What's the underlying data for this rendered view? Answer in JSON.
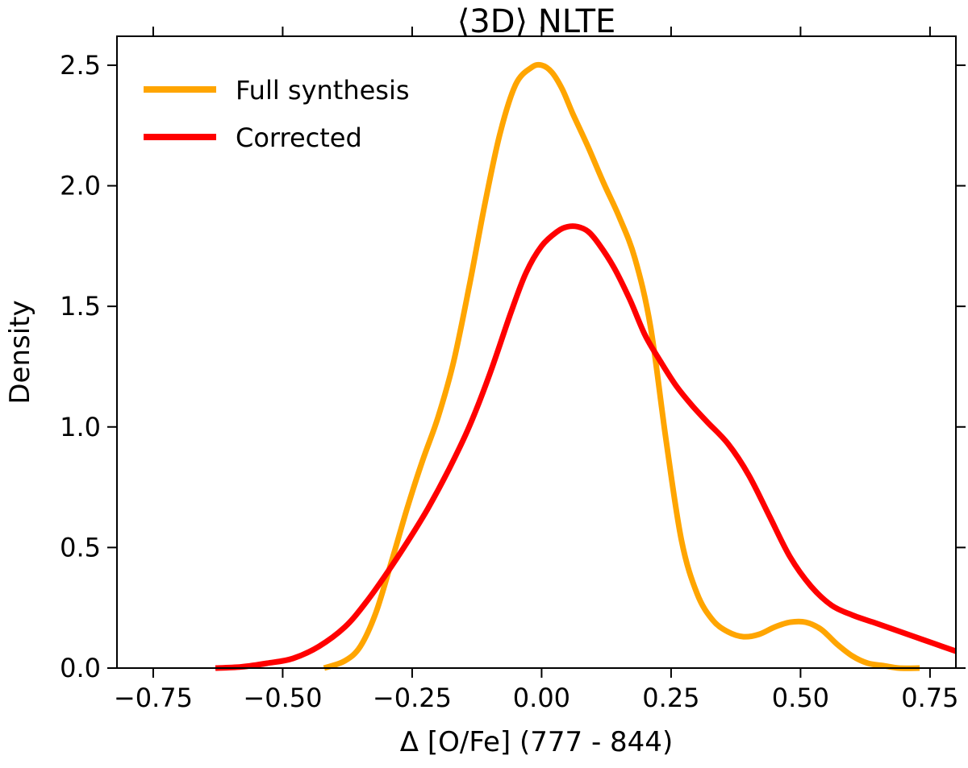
{
  "chart_data": {
    "type": "line",
    "title": "⟨3D⟩ NLTE",
    "xlabel": "Δ [O/Fe] (777 - 844)",
    "ylabel": "Density",
    "xlim": [
      -0.82,
      0.8
    ],
    "ylim": [
      0,
      2.62
    ],
    "xticks": [
      -0.75,
      -0.5,
      -0.25,
      0.0,
      0.25,
      0.5,
      0.75
    ],
    "xtick_labels": [
      "−0.75",
      "−0.50",
      "−0.25",
      "0.00",
      "0.25",
      "0.50",
      "0.75"
    ],
    "yticks": [
      0.0,
      0.5,
      1.0,
      1.5,
      2.0,
      2.5
    ],
    "ytick_labels": [
      "0.0",
      "0.5",
      "1.0",
      "1.5",
      "2.0",
      "2.5"
    ],
    "grid": false,
    "legend_location": "upper-left",
    "series": [
      {
        "name": "Full synthesis",
        "color": "#ffa500",
        "x": [
          -0.42,
          -0.38,
          -0.35,
          -0.32,
          -0.29,
          -0.26,
          -0.23,
          -0.2,
          -0.17,
          -0.14,
          -0.11,
          -0.08,
          -0.05,
          -0.02,
          0.0,
          0.02,
          0.04,
          0.06,
          0.09,
          0.12,
          0.15,
          0.18,
          0.21,
          0.24,
          0.27,
          0.3,
          0.33,
          0.36,
          0.39,
          0.42,
          0.45,
          0.48,
          0.51,
          0.54,
          0.57,
          0.6,
          0.63,
          0.66,
          0.69,
          0.73
        ],
        "values": [
          0.0,
          0.03,
          0.09,
          0.23,
          0.44,
          0.66,
          0.86,
          1.04,
          1.27,
          1.58,
          1.92,
          2.22,
          2.42,
          2.49,
          2.5,
          2.47,
          2.4,
          2.3,
          2.16,
          2.01,
          1.87,
          1.7,
          1.42,
          0.95,
          0.53,
          0.31,
          0.2,
          0.15,
          0.13,
          0.14,
          0.17,
          0.19,
          0.19,
          0.16,
          0.1,
          0.05,
          0.02,
          0.01,
          0.0,
          0.0
        ]
      },
      {
        "name": "Corrected",
        "color": "#ff0000",
        "x": [
          -0.63,
          -0.58,
          -0.53,
          -0.48,
          -0.43,
          -0.38,
          -0.34,
          -0.3,
          -0.26,
          -0.22,
          -0.18,
          -0.14,
          -0.1,
          -0.06,
          -0.03,
          0.0,
          0.03,
          0.05,
          0.07,
          0.09,
          0.11,
          0.14,
          0.17,
          0.2,
          0.23,
          0.26,
          0.29,
          0.32,
          0.36,
          0.4,
          0.44,
          0.48,
          0.52,
          0.56,
          0.6,
          0.64,
          0.68,
          0.72,
          0.76,
          0.8
        ],
        "values": [
          0.0,
          0.005,
          0.02,
          0.04,
          0.09,
          0.17,
          0.27,
          0.39,
          0.52,
          0.66,
          0.82,
          1.0,
          1.22,
          1.47,
          1.64,
          1.75,
          1.81,
          1.83,
          1.83,
          1.81,
          1.76,
          1.66,
          1.53,
          1.38,
          1.27,
          1.17,
          1.09,
          1.02,
          0.93,
          0.8,
          0.63,
          0.46,
          0.34,
          0.26,
          0.22,
          0.19,
          0.16,
          0.13,
          0.1,
          0.07
        ]
      }
    ]
  }
}
